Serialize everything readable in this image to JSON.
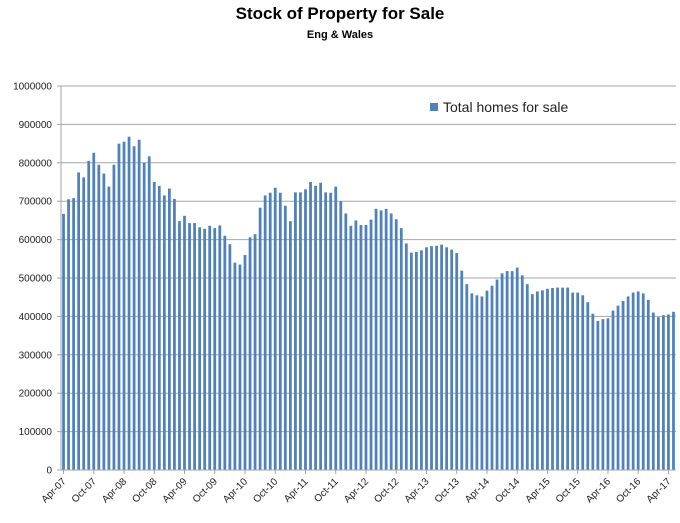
{
  "chart_data": {
    "type": "bar",
    "title": "Stock of Property for Sale",
    "subtitle": "Eng & Wales",
    "xlabel": "",
    "ylabel": "",
    "ylim": [
      0,
      1000000
    ],
    "yticks": [
      "0",
      "100000",
      "200000",
      "300000",
      "400000",
      "500000",
      "600000",
      "700000",
      "800000",
      "900000",
      "1000000"
    ],
    "xtick_labels": [
      "Apr-07",
      "Oct-07",
      "Apr-08",
      "Oct-08",
      "Apr-09",
      "Oct-09",
      "Apr-10",
      "Oct-10",
      "Apr-11",
      "Oct-11",
      "Apr-12",
      "Oct-12",
      "Apr-13",
      "Oct-13",
      "Apr-14",
      "Oct-14",
      "Apr-15",
      "Oct-15",
      "Apr-16",
      "Oct-16",
      "Apr-17"
    ],
    "grid": true,
    "legend_position": "top-right",
    "color": "#4f81bd",
    "series": [
      {
        "name": "Total homes for sale",
        "values": [
          667000,
          705000,
          708000,
          775000,
          762000,
          805000,
          826000,
          795000,
          772000,
          738000,
          795000,
          850000,
          855000,
          868000,
          843000,
          860000,
          800000,
          817000,
          750000,
          740000,
          715000,
          733000,
          706000,
          648000,
          662000,
          643000,
          643000,
          632000,
          628000,
          636000,
          630000,
          637000,
          610000,
          588000,
          540000,
          535000,
          560000,
          606000,
          614000,
          683000,
          715000,
          722000,
          735000,
          722000,
          688000,
          648000,
          723000,
          723000,
          731000,
          750000,
          740000,
          748000,
          723000,
          722000,
          738000,
          700000,
          668000,
          636000,
          650000,
          638000,
          638000,
          652000,
          680000,
          676000,
          680000,
          668000,
          653000,
          630000,
          590000,
          566000,
          568000,
          572000,
          580000,
          583000,
          584000,
          587000,
          580000,
          574000,
          565000,
          519000,
          484000,
          460000,
          455000,
          452000,
          467000,
          480000,
          496000,
          512000,
          518000,
          518000,
          527000,
          507000,
          484000,
          458000,
          465000,
          468000,
          472000,
          474000,
          475000,
          475000,
          475000,
          462000,
          462000,
          455000,
          437000,
          407000,
          388000,
          393000,
          395000,
          415000,
          428000,
          440000,
          452000,
          462000,
          465000,
          460000,
          443000,
          410000,
          398000,
          403000,
          405000,
          412000
        ]
      }
    ]
  }
}
